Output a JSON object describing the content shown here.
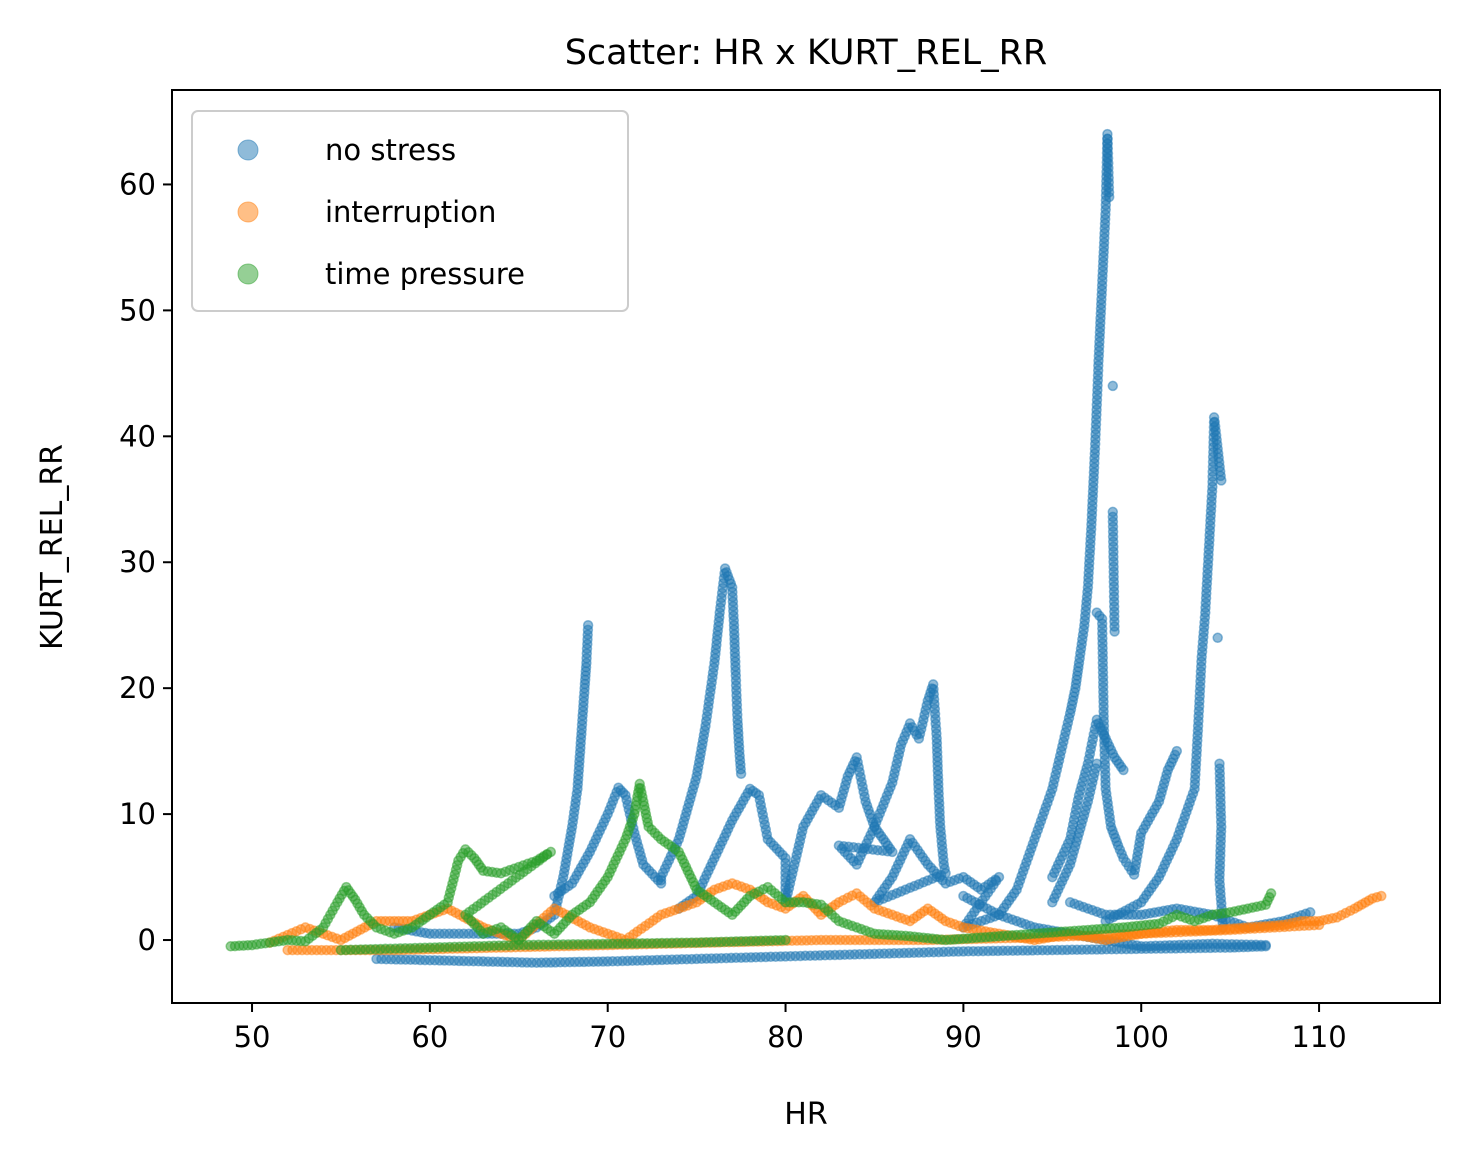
{
  "chart_data": {
    "type": "scatter",
    "title": "Scatter: HR x KURT_REL_RR",
    "xlabel": "HR",
    "ylabel": "KURT_REL_RR",
    "xlim": [
      45.5,
      116.8
    ],
    "ylim": [
      -5.0,
      67.5
    ],
    "xticks": [
      50,
      60,
      70,
      80,
      90,
      100,
      110
    ],
    "yticks": [
      0,
      10,
      20,
      30,
      40,
      50,
      60
    ],
    "grid": false,
    "legend_position": "upper-left",
    "series": [
      {
        "name": "no stress",
        "color": "#1f77b4",
        "points": [
          [
            57,
            -1.5
          ],
          [
            60,
            -1.6
          ],
          [
            63,
            -1.7
          ],
          [
            66,
            -1.8
          ],
          [
            70,
            -1.7
          ],
          [
            75,
            -1.5
          ],
          [
            80,
            -1.3
          ],
          [
            85,
            -1.1
          ],
          [
            90,
            -0.9
          ],
          [
            95,
            -0.8
          ],
          [
            100,
            -0.7
          ],
          [
            105,
            -0.6
          ],
          [
            107,
            -0.5
          ],
          [
            58,
            1.0
          ],
          [
            60,
            0.5
          ],
          [
            63,
            0.5
          ],
          [
            65,
            0.5
          ],
          [
            66,
            1.0
          ],
          [
            67,
            2.0
          ],
          [
            67.5,
            5.0
          ],
          [
            68,
            9.0
          ],
          [
            68.3,
            12.0
          ],
          [
            68.5,
            16.0
          ],
          [
            68.7,
            20.0
          ],
          [
            68.8,
            22.0
          ],
          [
            68.9,
            25.0
          ],
          [
            67,
            3.5
          ],
          [
            68,
            4.5
          ],
          [
            69,
            7.0
          ],
          [
            70,
            10.0
          ],
          [
            70.6,
            12.1
          ],
          [
            71,
            11.5
          ],
          [
            71.5,
            8.5
          ],
          [
            72,
            6.0
          ],
          [
            73,
            4.5
          ],
          [
            73,
            5.0
          ],
          [
            74,
            8.0
          ],
          [
            75,
            13.0
          ],
          [
            75.5,
            17.0
          ],
          [
            76,
            22.0
          ],
          [
            76.3,
            26.0
          ],
          [
            76.6,
            29.5
          ],
          [
            77,
            28.0
          ],
          [
            77.1,
            25.0
          ],
          [
            77.2,
            21.0
          ],
          [
            77.3,
            17.5
          ],
          [
            77.4,
            15.0
          ],
          [
            77.5,
            13.2
          ],
          [
            74,
            2.5
          ],
          [
            75,
            3.5
          ],
          [
            76,
            6.5
          ],
          [
            77,
            9.5
          ],
          [
            78,
            12.0
          ],
          [
            78.5,
            11.5
          ],
          [
            79,
            8.0
          ],
          [
            80,
            6.5
          ],
          [
            80,
            3.0
          ],
          [
            81,
            9.0
          ],
          [
            82,
            11.5
          ],
          [
            83,
            10.5
          ],
          [
            83.5,
            13.0
          ],
          [
            84,
            14.5
          ],
          [
            84.5,
            11.0
          ],
          [
            85,
            9.0
          ],
          [
            85.5,
            8.0
          ],
          [
            86,
            7.0
          ],
          [
            83,
            7.5
          ],
          [
            84,
            6.0
          ],
          [
            85,
            9.0
          ],
          [
            86,
            12.5
          ],
          [
            86.5,
            15.5
          ],
          [
            87,
            17.2
          ],
          [
            87.5,
            16.0
          ],
          [
            88,
            19.0
          ],
          [
            88.3,
            20.3
          ],
          [
            88.5,
            16.0
          ],
          [
            88.6,
            12.0
          ],
          [
            88.7,
            9.0
          ],
          [
            88.8,
            7.5
          ],
          [
            88.9,
            6.0
          ],
          [
            89,
            5.3
          ],
          [
            85,
            3.0
          ],
          [
            86,
            5.0
          ],
          [
            87,
            8.0
          ],
          [
            88,
            6.0
          ],
          [
            89,
            4.5
          ],
          [
            90,
            5.0
          ],
          [
            91,
            4.0
          ],
          [
            92,
            5.0
          ],
          [
            90,
            1.0
          ],
          [
            92,
            2.0
          ],
          [
            93,
            4.0
          ],
          [
            94,
            8.0
          ],
          [
            95,
            12.0
          ],
          [
            95.5,
            15.0
          ],
          [
            96,
            18.0
          ],
          [
            96.3,
            20.0
          ],
          [
            96.5,
            22.0
          ],
          [
            96.8,
            25.0
          ],
          [
            97,
            28.0
          ],
          [
            97.2,
            33.0
          ],
          [
            97.4,
            39.0
          ],
          [
            97.6,
            46.0
          ],
          [
            97.8,
            52.0
          ],
          [
            98,
            58.0
          ],
          [
            98.1,
            64.0
          ],
          [
            98.2,
            59.0
          ],
          [
            98.4,
            44.0
          ],
          [
            98.4,
            34.0
          ],
          [
            98.5,
            24.5
          ],
          [
            95,
            3.0
          ],
          [
            96,
            6.0
          ],
          [
            97,
            11.0
          ],
          [
            97.5,
            14.0
          ],
          [
            97.5,
            26.0
          ],
          [
            97.8,
            25.5
          ],
          [
            97.9,
            17.0
          ],
          [
            98.0,
            12.0
          ],
          [
            98.3,
            9.0
          ],
          [
            98.7,
            7.5
          ],
          [
            99,
            6.5
          ],
          [
            99.6,
            5.2
          ],
          [
            100,
            8.5
          ],
          [
            101,
            11.0
          ],
          [
            101.5,
            13.5
          ],
          [
            102,
            15.0
          ],
          [
            95,
            5.0
          ],
          [
            96,
            8.0
          ],
          [
            96.5,
            11.5
          ],
          [
            97,
            14.0
          ],
          [
            97.5,
            17.5
          ],
          [
            98,
            16.0
          ],
          [
            98.5,
            14.5
          ],
          [
            99,
            13.5
          ],
          [
            98,
            1.5
          ],
          [
            100,
            3.0
          ],
          [
            101,
            5.0
          ],
          [
            102,
            8.0
          ],
          [
            103,
            12.0
          ],
          [
            103.2,
            17.0
          ],
          [
            103.4,
            22.5
          ],
          [
            103.6,
            26.0
          ],
          [
            103.8,
            31.0
          ],
          [
            104,
            36.0
          ],
          [
            104.1,
            41.5
          ],
          [
            104.3,
            39.0
          ],
          [
            104.5,
            36.5
          ],
          [
            104.3,
            24.0
          ],
          [
            104.4,
            14.0
          ],
          [
            104.5,
            9.0
          ],
          [
            104.4,
            4.8
          ],
          [
            104.6,
            1.0
          ],
          [
            96,
            3.0
          ],
          [
            98,
            2.0
          ],
          [
            100,
            2.0
          ],
          [
            102,
            2.5
          ],
          [
            104,
            2.0
          ],
          [
            106,
            1.0
          ],
          [
            108,
            1.5
          ],
          [
            109.5,
            2.2
          ],
          [
            90,
            3.5
          ],
          [
            92,
            2.0
          ],
          [
            94,
            1.0
          ],
          [
            96,
            0.5
          ],
          [
            98,
            0.0
          ],
          [
            100,
            -0.5
          ],
          [
            104,
            -0.3
          ],
          [
            107,
            -0.4
          ]
        ]
      },
      {
        "name": "interruption",
        "color": "#ff7f0e",
        "points": [
          [
            51,
            -0.2
          ],
          [
            53,
            1.0
          ],
          [
            55,
            0.0
          ],
          [
            57,
            1.5
          ],
          [
            59,
            1.5
          ],
          [
            61,
            2.5
          ],
          [
            63,
            1.0
          ],
          [
            65,
            0.0
          ],
          [
            67,
            2.5
          ],
          [
            69,
            1.0
          ],
          [
            71,
            0.0
          ],
          [
            73,
            2.0
          ],
          [
            75,
            3.0
          ],
          [
            76,
            4.0
          ],
          [
            77,
            4.5
          ],
          [
            78,
            4.0
          ],
          [
            79,
            3.0
          ],
          [
            80,
            2.5
          ],
          [
            81,
            3.5
          ],
          [
            82,
            2.0
          ],
          [
            83,
            3.0
          ],
          [
            84,
            3.7
          ],
          [
            85,
            2.5
          ],
          [
            86,
            2.0
          ],
          [
            87,
            1.5
          ],
          [
            88,
            2.5
          ],
          [
            89,
            1.5
          ],
          [
            90,
            1.0
          ],
          [
            92,
            0.5
          ],
          [
            94,
            0.0
          ],
          [
            96,
            0.5
          ],
          [
            98,
            0.0
          ],
          [
            100,
            0.5
          ],
          [
            102,
            0.8
          ],
          [
            104,
            0.8
          ],
          [
            106,
            1.0
          ],
          [
            108,
            1.2
          ],
          [
            109,
            1.5
          ],
          [
            110,
            1.5
          ],
          [
            111,
            1.8
          ],
          [
            112,
            2.5
          ],
          [
            113,
            3.3
          ],
          [
            113.5,
            3.5
          ],
          [
            52,
            -0.8
          ],
          [
            58,
            -0.8
          ],
          [
            64,
            -0.6
          ],
          [
            70,
            -0.4
          ],
          [
            76,
            -0.2
          ],
          [
            82,
            0.0
          ],
          [
            88,
            0.0
          ],
          [
            94,
            0.2
          ],
          [
            100,
            0.5
          ],
          [
            105,
            0.8
          ],
          [
            110,
            1.2
          ]
        ]
      },
      {
        "name": "time pressure",
        "color": "#2ca02c",
        "points": [
          [
            48.8,
            -0.5
          ],
          [
            50,
            -0.4
          ],
          [
            51,
            -0.2
          ],
          [
            52,
            0.0
          ],
          [
            53,
            -0.1
          ],
          [
            54,
            1.0
          ],
          [
            54.8,
            3.0
          ],
          [
            55.3,
            4.2
          ],
          [
            55.8,
            3.2
          ],
          [
            56.3,
            2.0
          ],
          [
            57,
            1.0
          ],
          [
            58,
            0.5
          ],
          [
            59,
            1.0
          ],
          [
            60,
            2.0
          ],
          [
            61,
            3.0
          ],
          [
            61.6,
            6.3
          ],
          [
            62,
            7.2
          ],
          [
            62.5,
            6.5
          ],
          [
            63,
            5.5
          ],
          [
            64,
            5.3
          ],
          [
            65,
            5.8
          ],
          [
            66,
            6.3
          ],
          [
            66.8,
            7.0
          ],
          [
            62,
            2.0
          ],
          [
            63,
            0.5
          ],
          [
            64,
            1.0
          ],
          [
            65,
            0.0
          ],
          [
            66,
            1.5
          ],
          [
            67,
            0.5
          ],
          [
            68,
            2.0
          ],
          [
            69,
            3.0
          ],
          [
            70,
            5.0
          ],
          [
            71,
            8.0
          ],
          [
            71.5,
            10.0
          ],
          [
            71.8,
            12.4
          ],
          [
            72,
            11.0
          ],
          [
            72.3,
            9.0
          ],
          [
            73,
            8.0
          ],
          [
            74,
            7.0
          ],
          [
            74.5,
            5.5
          ],
          [
            75,
            4.0
          ],
          [
            76,
            3.0
          ],
          [
            77,
            2.0
          ],
          [
            78,
            3.5
          ],
          [
            79,
            4.2
          ],
          [
            80,
            3.0
          ],
          [
            81,
            3.0
          ],
          [
            82,
            2.8
          ],
          [
            83,
            1.5
          ],
          [
            85,
            0.5
          ],
          [
            87,
            0.3
          ],
          [
            89,
            0.0
          ],
          [
            91,
            0.2
          ],
          [
            93,
            0.4
          ],
          [
            95,
            0.6
          ],
          [
            97,
            0.8
          ],
          [
            99,
            1.0
          ],
          [
            101,
            1.3
          ],
          [
            102,
            2.0
          ],
          [
            103,
            1.5
          ],
          [
            104,
            2.0
          ],
          [
            105,
            2.2
          ],
          [
            106,
            2.5
          ],
          [
            107,
            2.8
          ],
          [
            107.3,
            3.7
          ],
          [
            55,
            -0.8
          ],
          [
            60,
            -0.6
          ],
          [
            65,
            -0.4
          ],
          [
            70,
            -0.3
          ],
          [
            75,
            -0.2
          ],
          [
            80,
            0.0
          ]
        ]
      }
    ]
  }
}
